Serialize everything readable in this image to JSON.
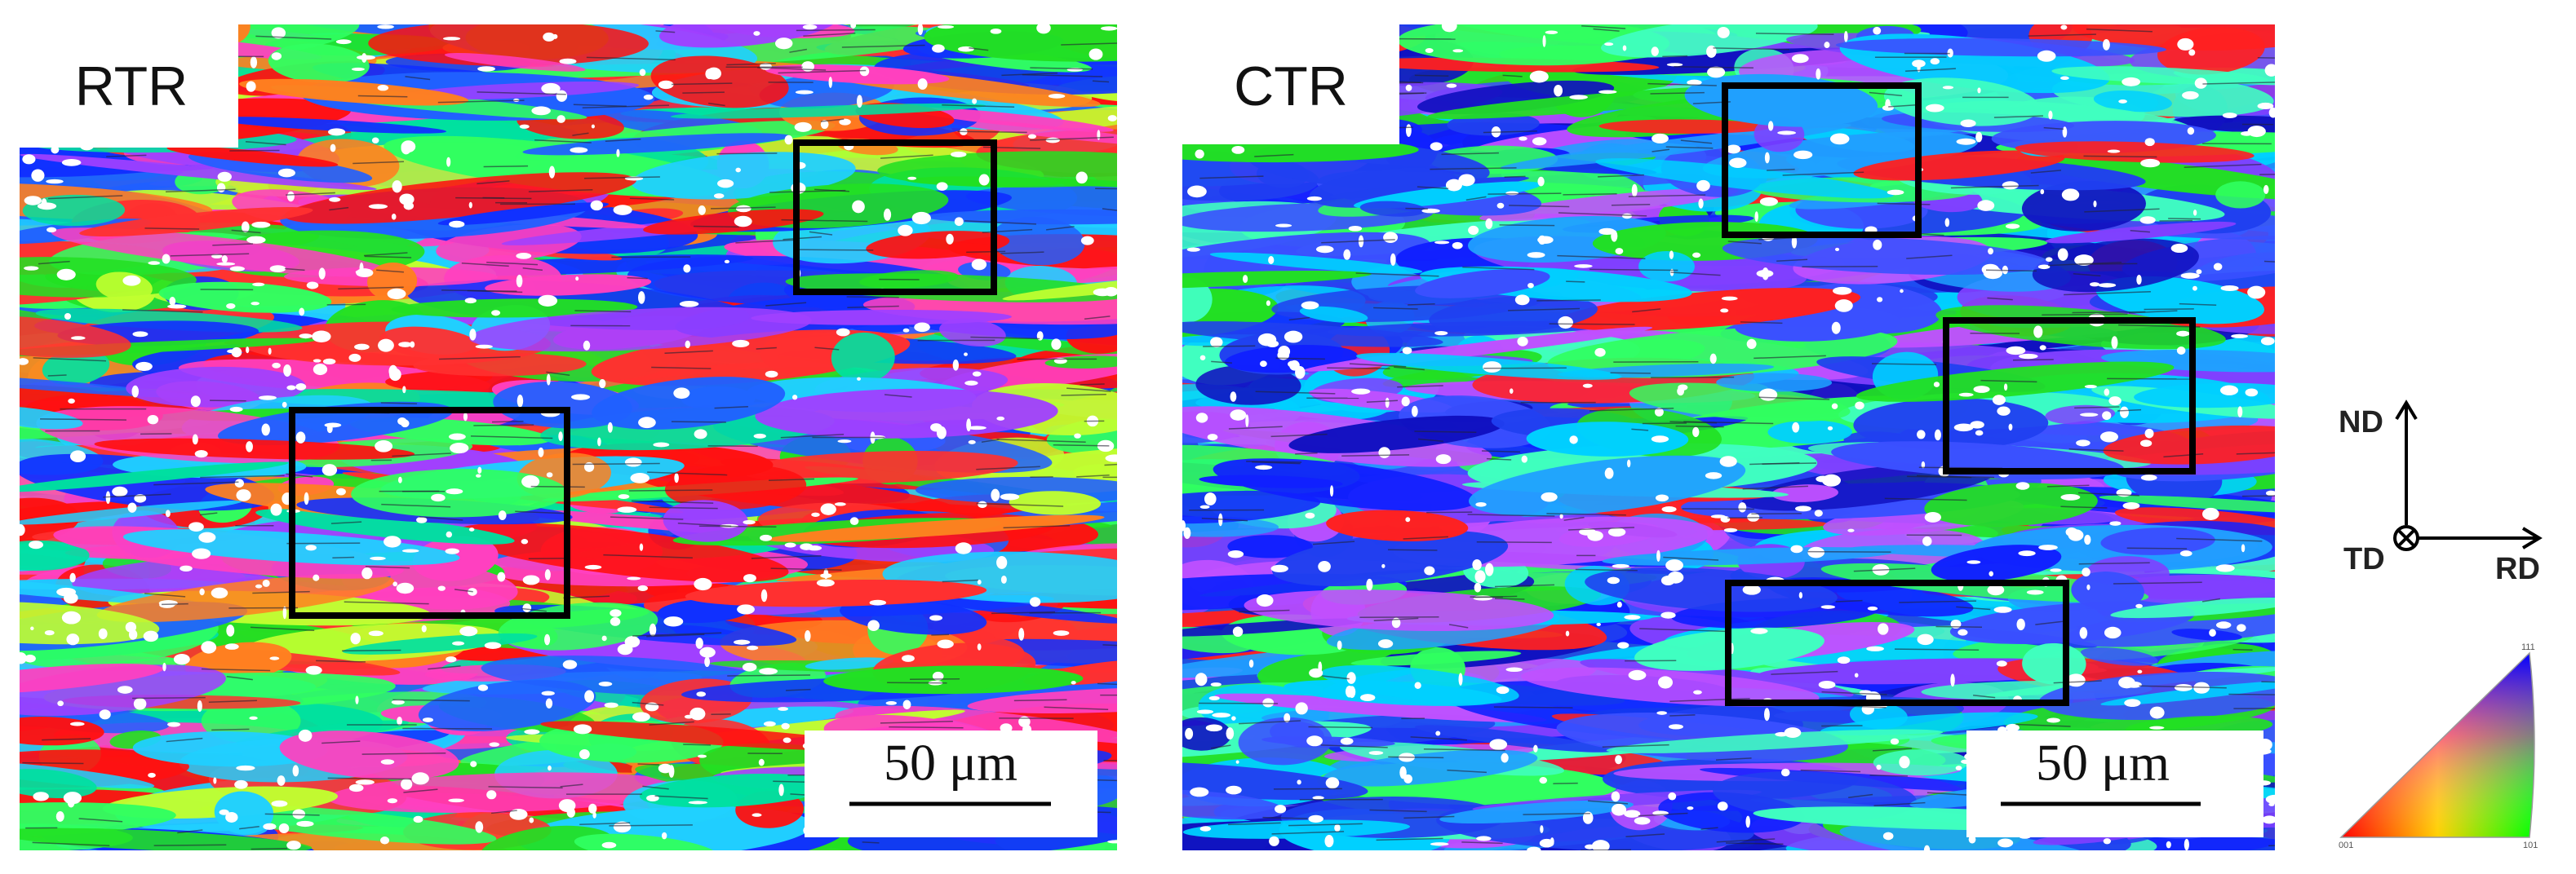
{
  "panels": [
    {
      "label": "RTR",
      "scale_bar": "50 μm"
    },
    {
      "label": "CTR",
      "scale_bar": "50 μm"
    }
  ],
  "axes": {
    "normal": "ND",
    "transverse": "TD",
    "rolling": "RD"
  },
  "ipf_legend": {
    "corners": [
      "001",
      "101",
      "111"
    ]
  }
}
